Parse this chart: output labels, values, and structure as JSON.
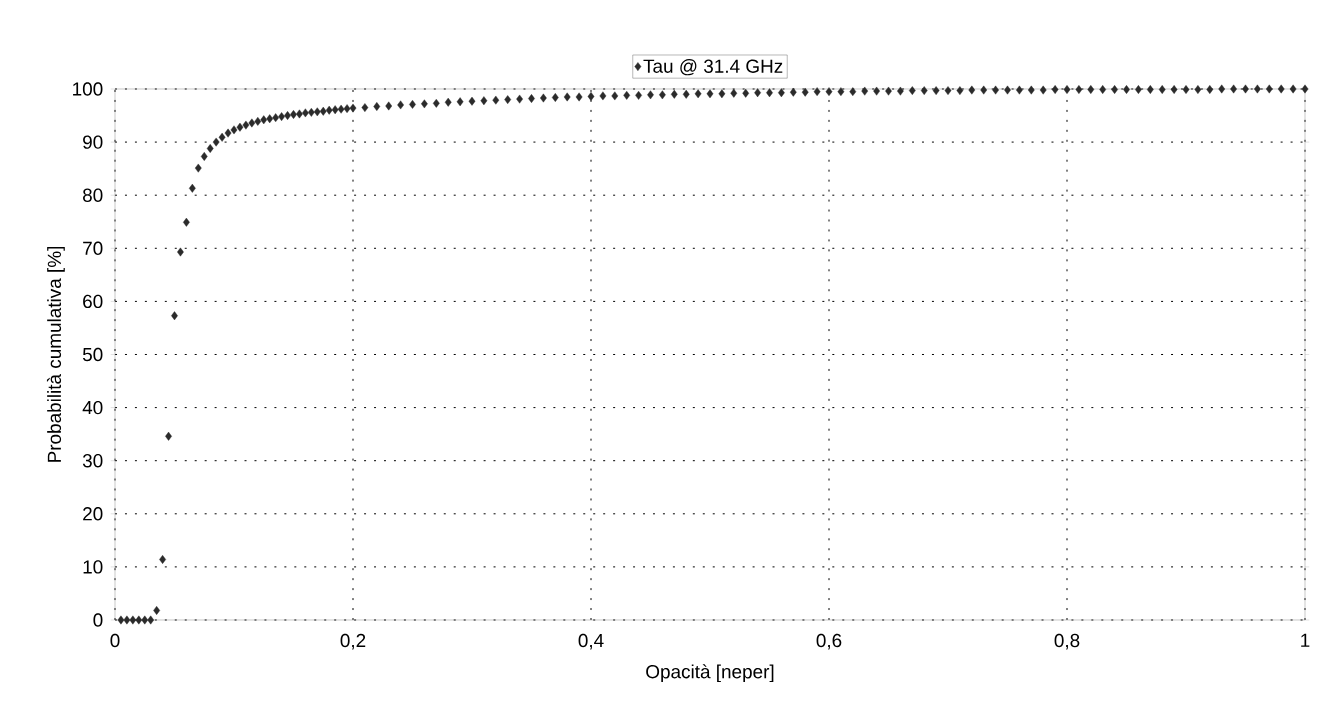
{
  "chart_data": {
    "type": "scatter",
    "xlabel": "Opacità [neper]",
    "ylabel": "Probabilità cumulativa [%]",
    "xlim": [
      0,
      1
    ],
    "ylim": [
      0,
      100
    ],
    "xticks": [
      0,
      {
        "value": 0.2,
        "label": "0,2"
      },
      {
        "value": 0.4,
        "label": "0,4"
      },
      {
        "value": 0.6,
        "label": "0,6"
      },
      {
        "value": 0.8,
        "label": "0,8"
      },
      1
    ],
    "yticks": [
      0,
      10,
      20,
      30,
      40,
      50,
      60,
      70,
      80,
      90,
      100
    ],
    "grid": true,
    "legend": "top",
    "marker": "diamond",
    "series": [
      {
        "name": "Tau @ 31.4 GHz",
        "color": "#2b2b2b",
        "x": [
          0.005,
          0.01,
          0.015,
          0.02,
          0.025,
          0.03,
          0.035,
          0.04,
          0.045,
          0.05,
          0.055,
          0.06,
          0.065,
          0.07,
          0.075,
          0.08,
          0.085,
          0.09,
          0.095,
          0.1,
          0.105,
          0.11,
          0.115,
          0.12,
          0.125,
          0.13,
          0.135,
          0.14,
          0.145,
          0.15,
          0.155,
          0.16,
          0.165,
          0.17,
          0.175,
          0.18,
          0.185,
          0.19,
          0.195,
          0.2,
          0.21,
          0.22,
          0.23,
          0.24,
          0.25,
          0.26,
          0.27,
          0.28,
          0.29,
          0.3,
          0.31,
          0.32,
          0.33,
          0.34,
          0.35,
          0.36,
          0.37,
          0.38,
          0.39,
          0.4,
          0.41,
          0.42,
          0.43,
          0.44,
          0.45,
          0.46,
          0.47,
          0.48,
          0.49,
          0.5,
          0.51,
          0.52,
          0.53,
          0.54,
          0.55,
          0.56,
          0.57,
          0.58,
          0.59,
          0.6,
          0.61,
          0.62,
          0.63,
          0.64,
          0.65,
          0.66,
          0.67,
          0.68,
          0.69,
          0.7,
          0.71,
          0.72,
          0.73,
          0.74,
          0.75,
          0.76,
          0.77,
          0.78,
          0.79,
          0.8,
          0.81,
          0.82,
          0.83,
          0.84,
          0.85,
          0.86,
          0.87,
          0.88,
          0.89,
          0.9,
          0.91,
          0.92,
          0.93,
          0.94,
          0.95,
          0.96,
          0.97,
          0.98,
          0.99,
          1.0
        ],
        "values": [
          0,
          0,
          0,
          0,
          0,
          0,
          1.8,
          11.4,
          34.6,
          57.3,
          69.3,
          74.9,
          81.3,
          85.1,
          87.3,
          88.8,
          90.0,
          90.9,
          91.7,
          92.3,
          92.8,
          93.2,
          93.6,
          93.9,
          94.2,
          94.4,
          94.6,
          94.8,
          95.0,
          95.2,
          95.3,
          95.5,
          95.6,
          95.7,
          95.8,
          96.0,
          96.1,
          96.2,
          96.3,
          96.4,
          96.5,
          96.7,
          96.8,
          97.0,
          97.1,
          97.2,
          97.3,
          97.5,
          97.6,
          97.7,
          97.8,
          97.9,
          98.0,
          98.1,
          98.2,
          98.3,
          98.4,
          98.5,
          98.5,
          98.6,
          98.7,
          98.7,
          98.8,
          98.8,
          98.9,
          98.9,
          99.0,
          99.0,
          99.1,
          99.1,
          99.1,
          99.2,
          99.2,
          99.3,
          99.3,
          99.3,
          99.4,
          99.4,
          99.5,
          99.5,
          99.5,
          99.5,
          99.6,
          99.6,
          99.6,
          99.6,
          99.7,
          99.7,
          99.7,
          99.7,
          99.7,
          99.8,
          99.8,
          99.8,
          99.8,
          99.8,
          99.8,
          99.8,
          99.9,
          99.9,
          99.9,
          99.9,
          99.9,
          99.9,
          99.9,
          99.9,
          99.9,
          99.9,
          99.9,
          99.9,
          99.9,
          99.9,
          100,
          100,
          100,
          100,
          100,
          100,
          100,
          100
        ]
      }
    ]
  }
}
